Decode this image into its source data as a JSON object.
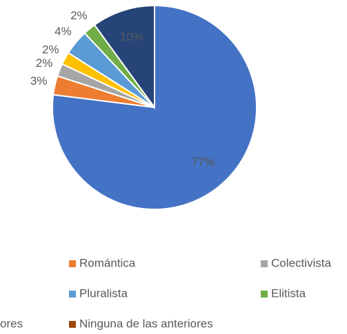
{
  "chart_data": {
    "type": "pie",
    "categories": [
      null,
      "Romántica",
      "Colectivista",
      null,
      "Pluralista",
      "Elitista",
      "ores",
      "Ninguna de las anteriores"
    ],
    "values": [
      77,
      3,
      2,
      2,
      4,
      2,
      10,
      0
    ],
    "value_labels": [
      "77%",
      "3%",
      "2%",
      "2%",
      "4%",
      "2%",
      "10%",
      null
    ],
    "colors": [
      "#4472c4",
      "#ed7d31",
      "#a5a5a5",
      "#ffc000",
      "#5b9bd5",
      "#70ad47",
      "#264478",
      "#9e480e"
    ]
  }
}
